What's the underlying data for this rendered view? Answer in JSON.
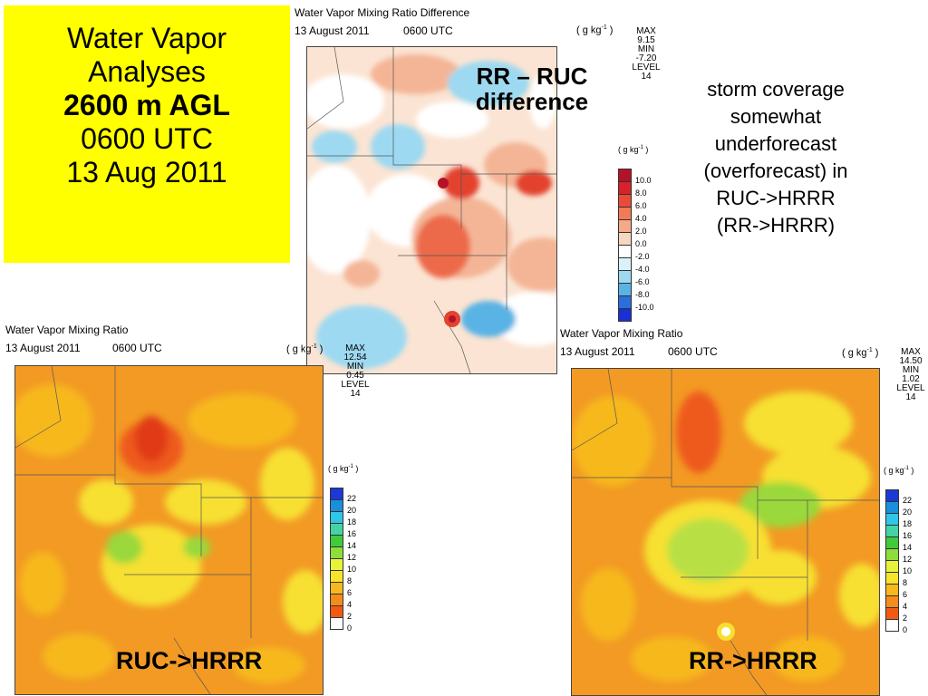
{
  "title_box": {
    "line1": "Water Vapor",
    "line2": "Analyses",
    "line3": "2600 m AGL",
    "line4": "0600 UTC",
    "line5": "13 Aug 2011"
  },
  "note": {
    "line1": "storm coverage",
    "line2": "somewhat",
    "line3": "underforecast",
    "line4": "(overforecast) in",
    "line5": "RUC->HRRR",
    "line6": "(RR->HRRR)"
  },
  "panels": {
    "diff": {
      "title": "Water Vapor Mixing Ratio Difference",
      "date": "13 August 2011",
      "time": "0600 UTC",
      "units": "( g kg",
      "units_exp": "-1",
      "units_close": " )",
      "max_label": "MAX",
      "max_value": "9.15",
      "min_label": "MIN",
      "min_value": "-7.20",
      "level_label": "LEVEL",
      "level_value": "14",
      "legend_units": "( g kg",
      "legend_exp": "-1",
      "legend_close": " )",
      "overlay_line1": "RR – RUC",
      "overlay_line2": "difference",
      "legend_ticks": [
        "10.0",
        "8.0",
        "6.0",
        "4.0",
        "2.0",
        "0.0",
        "-2.0",
        "-4.0",
        "-6.0",
        "-8.0",
        "-10.0"
      ],
      "legend_colors": [
        "#b5122a",
        "#d7222c",
        "#ec4a39",
        "#f27a55",
        "#f6a986",
        "#f8d7c0",
        "#fdfdfd",
        "#d8f1fb",
        "#9dd9f1",
        "#5ab3e5",
        "#2a6fdc",
        "#1a2fd6"
      ]
    },
    "ruc": {
      "title": "Water Vapor Mixing Ratio",
      "date": "13 August 2011",
      "time": "0600 UTC",
      "units": "( g kg",
      "units_exp": "-1",
      "units_close": " )",
      "max_label": "MAX",
      "max_value": "12.54",
      "min_label": "MIN",
      "min_value": "0.45",
      "level_label": "LEVEL",
      "level_value": "14",
      "legend_units": "( g kg",
      "legend_exp": "-1",
      "legend_close": " )",
      "label": "RUC->HRRR",
      "legend_ticks": [
        "22",
        "20",
        "18",
        "16",
        "14",
        "12",
        "10",
        "8",
        "6",
        "4",
        "2",
        "0"
      ],
      "legend_colors": [
        "#1c38d6",
        "#1a8fdc",
        "#2fc6e8",
        "#44d3a4",
        "#3fcb3a",
        "#8fdc3a",
        "#e7f23a",
        "#f7e32a",
        "#f7b81e",
        "#f58c1a",
        "#f25a14",
        "#ffffff"
      ]
    },
    "rr": {
      "title": "Water Vapor Mixing Ratio",
      "date": "13 August 2011",
      "time": "0600 UTC",
      "units": "( g kg",
      "units_exp": "-1",
      "units_close": " )",
      "max_label": "MAX",
      "max_value": "14.50",
      "min_label": "MIN",
      "min_value": "1.02",
      "level_label": "LEVEL",
      "level_value": "14",
      "legend_units": "( g kg",
      "legend_exp": "-1",
      "legend_close": " )",
      "label": "RR->HRRR",
      "legend_ticks": [
        "22",
        "20",
        "18",
        "16",
        "14",
        "12",
        "10",
        "8",
        "6",
        "4",
        "2",
        "0"
      ],
      "legend_colors": [
        "#1c38d6",
        "#1a8fdc",
        "#2fc6e8",
        "#44d3a4",
        "#3fcb3a",
        "#8fdc3a",
        "#e7f23a",
        "#f7e32a",
        "#f7b81e",
        "#f58c1a",
        "#f25a14",
        "#ffffff"
      ]
    }
  },
  "colors": {
    "title_box_bg": "#ffff00",
    "map_orange": "#f29a24",
    "map_red": "#ee5a1e",
    "map_yellow": "#f7e033",
    "map_green": "#9ad83a",
    "diff_pink": "#f4b596",
    "diff_red": "#e2432f",
    "diff_blue": "#7cc6ec"
  }
}
